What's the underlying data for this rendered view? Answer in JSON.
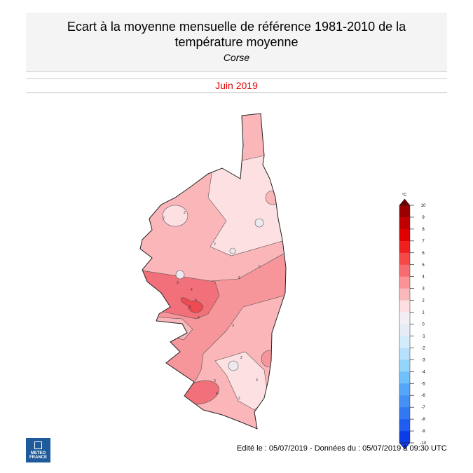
{
  "header": {
    "title_line1": "Ecart à la moyenne mensuelle de référence 1981-2010 de la",
    "title_line2": "température moyenne",
    "region": "Corse"
  },
  "period": "Juin 2019",
  "footer": "Edité le : 05/07/2019 - Données du : 05/07/2019 à 09:30 UTC",
  "logo": {
    "line1": "METEO",
    "line2": "FRANCE"
  },
  "legend": {
    "unit": "°C",
    "ticks": [
      "10",
      "9",
      "8",
      "7",
      "6",
      "5",
      "4",
      "3",
      "2",
      "1",
      "0",
      "-1",
      "-2",
      "-3",
      "-4",
      "-5",
      "-6",
      "-7",
      "-8",
      "-9",
      "-10"
    ],
    "colors": [
      "#6b0000",
      "#9a0000",
      "#c00000",
      "#e00000",
      "#f02020",
      "#f54848",
      "#f76c70",
      "#fa9296",
      "#fbb8ba",
      "#fddfe2",
      "#f2eff4",
      "#e6ecf6",
      "#d3ecfb",
      "#b6e0fb",
      "#95d4fb",
      "#6fc0fb",
      "#55a6f8",
      "#4490f5",
      "#3178f2",
      "#1f5cf0",
      "#0c3ce6"
    ]
  },
  "map_colors": {
    "c0_1": "#eceaf0",
    "c1_2": "#fde0e2",
    "c2_3": "#fbb6b9",
    "c3_4": "#f7969a",
    "c4_5": "#f2707a",
    "c5_6": "#ee4a52"
  },
  "contour_labels": [
    "2",
    "2",
    "2",
    "3",
    "3",
    "4",
    "4",
    "5",
    "5",
    "3",
    "3",
    "2",
    "2",
    "3",
    "4"
  ]
}
